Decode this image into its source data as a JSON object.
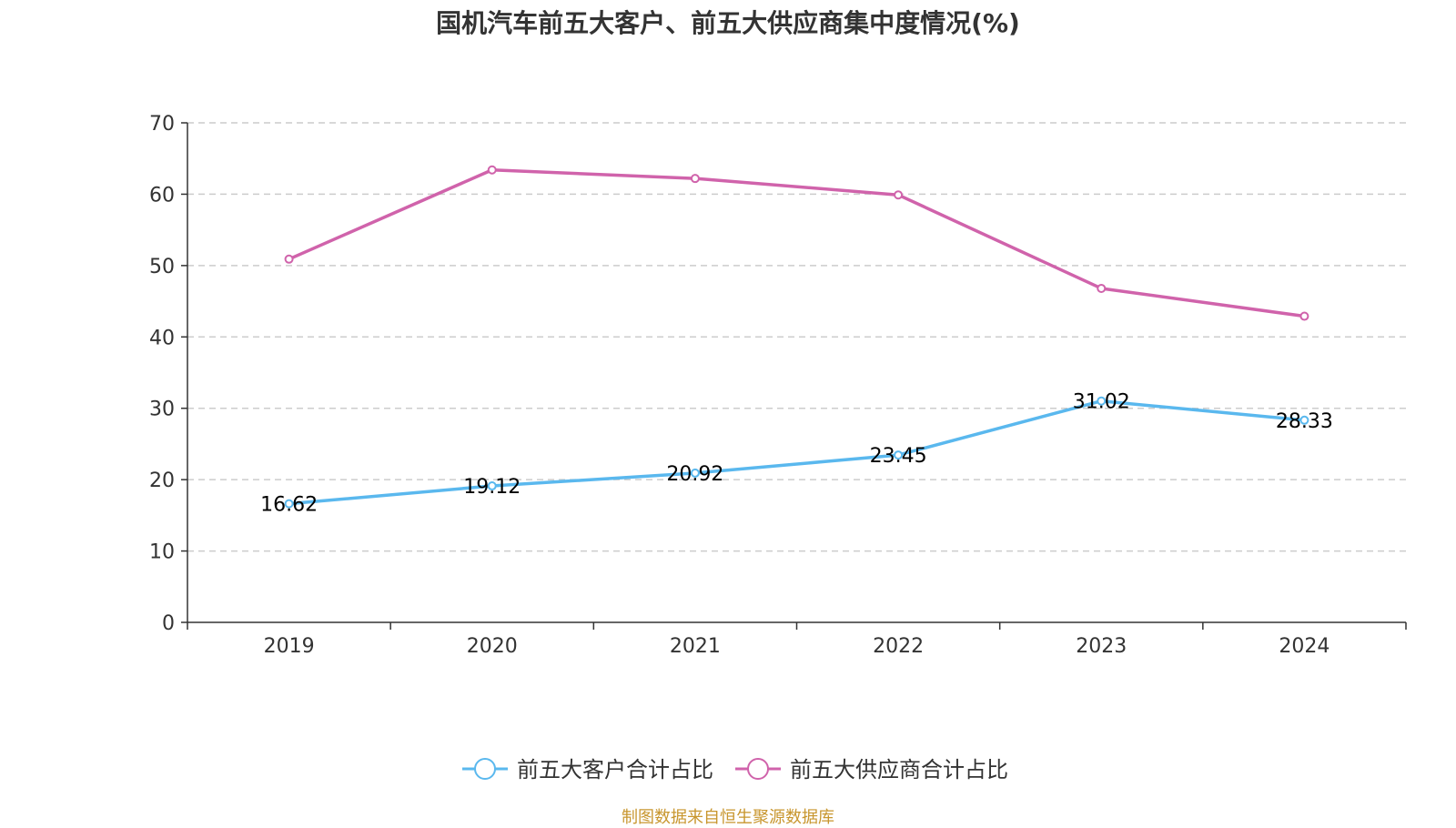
{
  "chart_data": {
    "type": "line",
    "title": "国机汽车前五大客户、前五大供应商集中度情况(%)",
    "xlabel": "",
    "ylabel": "",
    "categories": [
      "2019",
      "2020",
      "2021",
      "2022",
      "2023",
      "2024"
    ],
    "ylim": [
      0,
      70
    ],
    "yticks": [
      0,
      10,
      20,
      30,
      40,
      50,
      60,
      70
    ],
    "grid": "horizontal-dashed",
    "legend_position": "bottom",
    "series": [
      {
        "name": "前五大客户合计占比",
        "color": "#5ab8ee",
        "values": [
          16.62,
          19.12,
          20.92,
          23.45,
          31.02,
          28.33
        ],
        "show_labels": true
      },
      {
        "name": "前五大供应商合计占比",
        "color": "#d063ab",
        "values": [
          50.9,
          63.4,
          62.2,
          59.9,
          46.8,
          42.9
        ],
        "show_labels": false
      }
    ]
  },
  "source_text": "制图数据来自恒生聚源数据库"
}
